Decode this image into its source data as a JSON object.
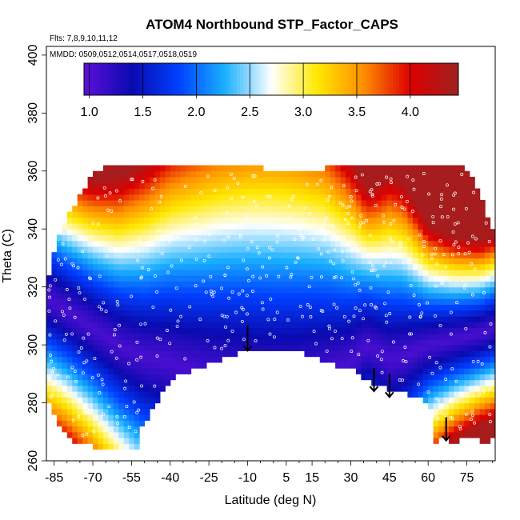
{
  "chart_data": {
    "type": "heatmap",
    "title": "ATOM4 Northbound STP_Factor_CAPS",
    "subtitle_flights": "Flts: 7,8,9,10,11,12",
    "subtitle_dates": "MMDD: 0509,0512,0514,0517,0518,0519",
    "xlabel": "Latitude (deg N)",
    "ylabel": "Theta (C)",
    "xlim": [
      -88,
      86
    ],
    "ylim": [
      260,
      403
    ],
    "x_ticks": [
      -85,
      -70,
      -55,
      -40,
      -25,
      -10,
      5,
      15,
      30,
      45,
      60,
      75
    ],
    "x_tick_labels": [
      "-85",
      "-70",
      "-55",
      "-40",
      "-25",
      "-10",
      "5",
      "15",
      "30",
      "45",
      "60",
      "75"
    ],
    "y_ticks": [
      260,
      280,
      300,
      320,
      340,
      360,
      380,
      400
    ],
    "y_tick_labels": [
      "260",
      "280",
      "300",
      "320",
      "340",
      "360",
      "380",
      "400"
    ],
    "colorbar": {
      "range": [
        0.95,
        4.45
      ],
      "ticks": [
        1.0,
        1.5,
        2.0,
        2.5,
        3.0,
        3.5,
        4.0
      ],
      "tick_labels": [
        "1.0",
        "1.5",
        "2.0",
        "2.5",
        "3.0",
        "3.5",
        "4.0"
      ],
      "colors": [
        "#5a0fd8",
        "#0a0ab0",
        "#0040ff",
        "#19b0ff",
        "#ffffff",
        "#ffe800",
        "#ff8c00",
        "#dd0000",
        "#a02020"
      ]
    },
    "field_top_theta": [
      [
        -87,
        324
      ],
      [
        -84,
        336
      ],
      [
        -80,
        344
      ],
      [
        -76,
        350
      ],
      [
        -72,
        356
      ],
      [
        -68,
        360
      ],
      [
        -62,
        362
      ],
      [
        -40,
        362
      ],
      [
        -20,
        362
      ],
      [
        10,
        360
      ],
      [
        30,
        362
      ],
      [
        50,
        362
      ],
      [
        70,
        362
      ],
      [
        76,
        360
      ],
      [
        80,
        352
      ],
      [
        84,
        340
      ]
    ],
    "field_bottom_theta": [
      [
        -87,
        280
      ],
      [
        -84,
        274
      ],
      [
        -80,
        270
      ],
      [
        -76,
        266
      ],
      [
        -70,
        265
      ],
      [
        -53,
        265
      ],
      [
        -53,
        271
      ],
      [
        -48,
        276
      ],
      [
        -44,
        282
      ],
      [
        -40,
        288
      ],
      [
        -30,
        292
      ],
      [
        -20,
        295
      ],
      [
        -10,
        298
      ],
      [
        0,
        299
      ],
      [
        10,
        298
      ],
      [
        20,
        294
      ],
      [
        30,
        292
      ],
      [
        38,
        287
      ],
      [
        44,
        285
      ],
      [
        50,
        284
      ],
      [
        56,
        282
      ],
      [
        60,
        280
      ],
      [
        62,
        272
      ],
      [
        63,
        266
      ],
      [
        66,
        270
      ],
      [
        70,
        266
      ],
      [
        75,
        268
      ],
      [
        80,
        268
      ],
      [
        82,
        265
      ],
      [
        84,
        268
      ]
    ],
    "trough_center_theta": [
      [
        -87,
        316
      ],
      [
        -80,
        312
      ],
      [
        -70,
        306
      ],
      [
        -60,
        300
      ],
      [
        -50,
        296
      ],
      [
        -40,
        294
      ],
      [
        -30,
        291
      ],
      [
        -20,
        289
      ],
      [
        -10,
        288
      ],
      [
        0,
        287
      ],
      [
        10,
        288
      ],
      [
        20,
        290
      ],
      [
        30,
        294
      ],
      [
        36,
        300
      ],
      [
        40,
        298
      ],
      [
        45,
        295
      ],
      [
        50,
        296
      ],
      [
        55,
        298
      ],
      [
        60,
        300
      ],
      [
        70,
        302
      ],
      [
        80,
        304
      ],
      [
        86,
        306
      ]
    ],
    "trough_width_theta": [
      [
        -87,
        30
      ],
      [
        -80,
        30
      ],
      [
        -70,
        32
      ],
      [
        -60,
        36
      ],
      [
        -50,
        42
      ],
      [
        -40,
        48
      ],
      [
        -30,
        53
      ],
      [
        -20,
        57
      ],
      [
        -10,
        59
      ],
      [
        0,
        60
      ],
      [
        10,
        58
      ],
      [
        20,
        54
      ],
      [
        30,
        44
      ],
      [
        36,
        34
      ],
      [
        40,
        36
      ],
      [
        45,
        40
      ],
      [
        50,
        38
      ],
      [
        55,
        32
      ],
      [
        60,
        26
      ],
      [
        70,
        22
      ],
      [
        80,
        20
      ],
      [
        86,
        20
      ]
    ],
    "arrows": [
      {
        "lat": -10,
        "theta_top": 307,
        "theta_bottom": 298
      },
      {
        "lat": 39,
        "theta_top": 292,
        "theta_bottom": 284
      },
      {
        "lat": 45,
        "theta_top": 290,
        "theta_bottom": 282
      },
      {
        "lat": 67,
        "theta_top": 275,
        "theta_bottom": 267
      }
    ],
    "obs_dot_color": "#ffffff"
  }
}
